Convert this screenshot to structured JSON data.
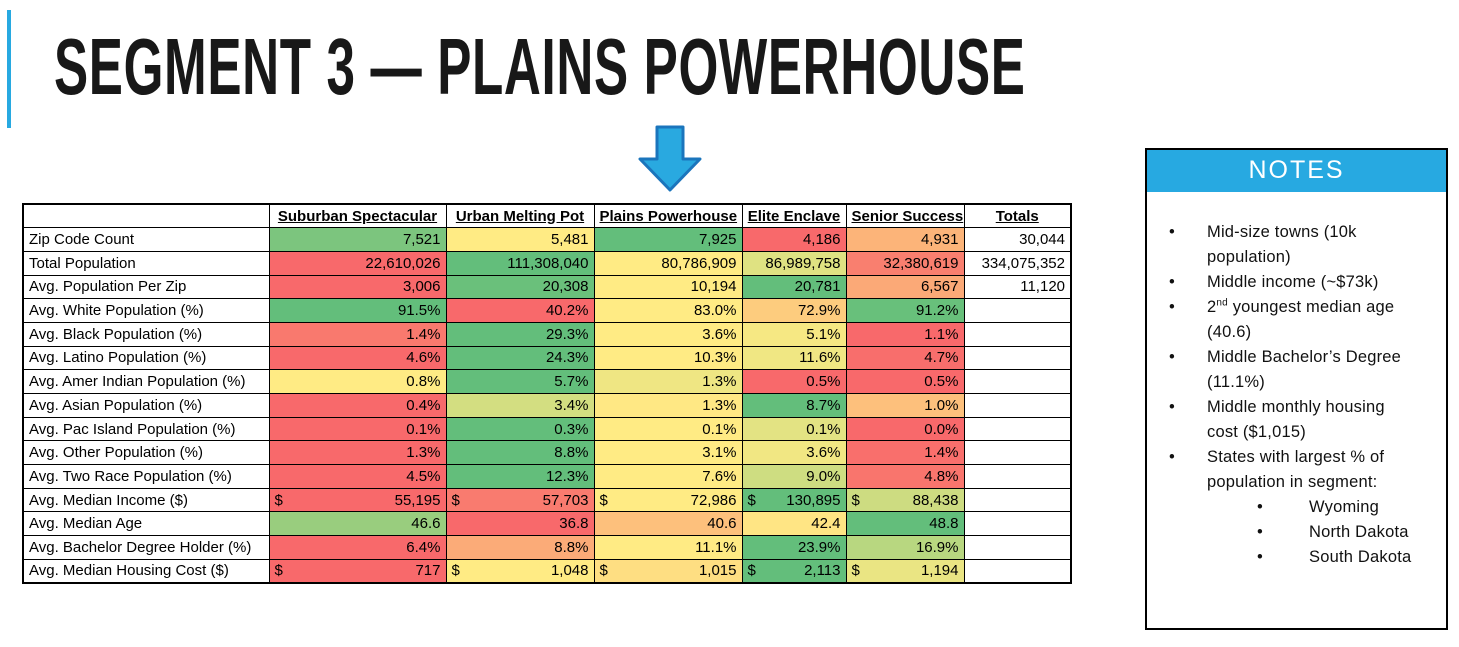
{
  "slide": {
    "title": "SEGMENT 3 — PLAINS POWERHOUSE"
  },
  "colors": {
    "accent_blue": "#27A9E1",
    "arrow_fill": "#29A9E0",
    "arrow_stroke": "#1B75BC",
    "scale_red": "#F8696B",
    "scale_yellow": "#FFEB84",
    "scale_green": "#63BE7B"
  },
  "arrow": {
    "name": "down-arrow"
  },
  "table": {
    "headers": [
      "",
      "Suburban Spectacular",
      "Urban Melting Pot",
      "Plains Powerhouse",
      "Elite Enclave",
      "Senior Success",
      "Totals"
    ],
    "column_keys": [
      "suburban-spectacular",
      "urban-melting-pot",
      "plains-powerhouse",
      "elite-enclave",
      "senior-success"
    ],
    "rows": [
      {
        "label": "Zip Code Count",
        "cells": [
          {
            "v": "7,521",
            "bg": "#7CC57E"
          },
          {
            "v": "5,481",
            "bg": "#FFEB84"
          },
          {
            "v": "7,925",
            "bg": "#63BE7B"
          },
          {
            "v": "4,186",
            "bg": "#F8696B"
          },
          {
            "v": "4,931",
            "bg": "#FCB479"
          }
        ],
        "total": "30,044"
      },
      {
        "label": "Total Population",
        "cells": [
          {
            "v": "22,610,026",
            "bg": "#F8696B"
          },
          {
            "v": "111,308,040",
            "bg": "#63BE7B"
          },
          {
            "v": "80,786,909",
            "bg": "#FFEB84"
          },
          {
            "v": "86,989,758",
            "bg": "#DFE282"
          },
          {
            "v": "32,380,619",
            "bg": "#F97F6F"
          }
        ],
        "total": "334,075,352"
      },
      {
        "label": "Avg. Population Per Zip",
        "cells": [
          {
            "v": "3,006",
            "bg": "#F8696B"
          },
          {
            "v": "20,308",
            "bg": "#6AC07B"
          },
          {
            "v": "10,194",
            "bg": "#FFEB84"
          },
          {
            "v": "20,781",
            "bg": "#63BE7B"
          },
          {
            "v": "6,567",
            "bg": "#FBA977"
          }
        ],
        "total": "11,120"
      },
      {
        "label": "Avg. White Population (%)",
        "cells": [
          {
            "v": "91.5%",
            "bg": "#63BE7B"
          },
          {
            "v": "40.2%",
            "bg": "#F8696B"
          },
          {
            "v": "83.0%",
            "bg": "#FFEB84"
          },
          {
            "v": "72.9%",
            "bg": "#FDCC7E"
          },
          {
            "v": "91.2%",
            "bg": "#68C07B"
          }
        ],
        "total": ""
      },
      {
        "label": "Avg. Black Population (%)",
        "cells": [
          {
            "v": "1.4%",
            "bg": "#F9796E"
          },
          {
            "v": "29.3%",
            "bg": "#63BE7B"
          },
          {
            "v": "3.6%",
            "bg": "#FFEB84"
          },
          {
            "v": "5.1%",
            "bg": "#F6E883"
          },
          {
            "v": "1.1%",
            "bg": "#F8696B"
          }
        ],
        "total": ""
      },
      {
        "label": "Avg. Latino Population (%)",
        "cells": [
          {
            "v": "4.6%",
            "bg": "#F8696B"
          },
          {
            "v": "24.3%",
            "bg": "#63BE7B"
          },
          {
            "v": "10.3%",
            "bg": "#FFEB84"
          },
          {
            "v": "11.6%",
            "bg": "#F0E783"
          },
          {
            "v": "4.7%",
            "bg": "#F86E6C"
          }
        ],
        "total": ""
      },
      {
        "label": "Avg. Amer Indian Population (%)",
        "cells": [
          {
            "v": "0.8%",
            "bg": "#FFEB84"
          },
          {
            "v": "5.7%",
            "bg": "#63BE7B"
          },
          {
            "v": "1.3%",
            "bg": "#EFE683"
          },
          {
            "v": "0.5%",
            "bg": "#F8696B"
          },
          {
            "v": "0.5%",
            "bg": "#F8696B"
          }
        ],
        "total": ""
      },
      {
        "label": "Avg. Asian Population (%)",
        "cells": [
          {
            "v": "0.4%",
            "bg": "#F8696B"
          },
          {
            "v": "3.4%",
            "bg": "#D3DE81"
          },
          {
            "v": "1.3%",
            "bg": "#FFE884"
          },
          {
            "v": "8.7%",
            "bg": "#63BE7B"
          },
          {
            "v": "1.0%",
            "bg": "#FDC07C"
          }
        ],
        "total": ""
      },
      {
        "label": "Avg. Pac Island Population (%)",
        "cells": [
          {
            "v": "0.1%",
            "bg": "#F8696B"
          },
          {
            "v": "0.3%",
            "bg": "#63BE7B"
          },
          {
            "v": "0.1%",
            "bg": "#FFEB84"
          },
          {
            "v": "0.1%",
            "bg": "#E3E383"
          },
          {
            "v": "0.0%",
            "bg": "#F8696B"
          }
        ],
        "total": ""
      },
      {
        "label": "Avg. Other Population (%)",
        "cells": [
          {
            "v": "1.3%",
            "bg": "#F8696B"
          },
          {
            "v": "8.8%",
            "bg": "#63BE7B"
          },
          {
            "v": "3.1%",
            "bg": "#FFEB84"
          },
          {
            "v": "3.6%",
            "bg": "#F1E783"
          },
          {
            "v": "1.4%",
            "bg": "#F96F6C"
          }
        ],
        "total": ""
      },
      {
        "label": "Avg. Two Race Population (%)",
        "cells": [
          {
            "v": "4.5%",
            "bg": "#F8696B"
          },
          {
            "v": "12.3%",
            "bg": "#63BE7B"
          },
          {
            "v": "7.6%",
            "bg": "#FFEB84"
          },
          {
            "v": "9.0%",
            "bg": "#CEDD81"
          },
          {
            "v": "4.8%",
            "bg": "#F9756D"
          }
        ],
        "total": ""
      },
      {
        "label": "Avg. Median Income ($)",
        "cells": [
          {
            "v": "55,195",
            "bg": "#F8696B",
            "prefix": "$"
          },
          {
            "v": "57,703",
            "bg": "#F97B6F",
            "prefix": "$"
          },
          {
            "v": "72,986",
            "bg": "#FFEB84",
            "prefix": "$"
          },
          {
            "v": "130,895",
            "bg": "#63BE7B",
            "prefix": "$"
          },
          {
            "v": "88,438",
            "bg": "#CDDC81",
            "prefix": "$"
          }
        ],
        "total": ""
      },
      {
        "label": "Avg. Median Age",
        "cells": [
          {
            "v": "46.6",
            "bg": "#99CD7E"
          },
          {
            "v": "36.8",
            "bg": "#F8696B"
          },
          {
            "v": "40.6",
            "bg": "#FDC07C"
          },
          {
            "v": "42.4",
            "bg": "#FFE584"
          },
          {
            "v": "48.8",
            "bg": "#63BE7B"
          }
        ],
        "total": ""
      },
      {
        "label": "Avg. Bachelor Degree Holder (%)",
        "cells": [
          {
            "v": "6.4%",
            "bg": "#F8696B"
          },
          {
            "v": "8.8%",
            "bg": "#FBAB78"
          },
          {
            "v": "11.1%",
            "bg": "#FFEB84"
          },
          {
            "v": "23.9%",
            "bg": "#63BE7B"
          },
          {
            "v": "16.9%",
            "bg": "#B8D780"
          }
        ],
        "total": ""
      },
      {
        "label": "Avg. Median Housing Cost ($)",
        "cells": [
          {
            "v": "717",
            "bg": "#F8696B",
            "prefix": "$"
          },
          {
            "v": "1,048",
            "bg": "#FFEB84",
            "prefix": "$"
          },
          {
            "v": "1,015",
            "bg": "#FEDE82",
            "prefix": "$"
          },
          {
            "v": "2,113",
            "bg": "#63BE7B",
            "prefix": "$"
          },
          {
            "v": "1,194",
            "bg": "#EAE583",
            "prefix": "$"
          }
        ],
        "total": ""
      }
    ]
  },
  "notes": {
    "title": "NOTES",
    "items": [
      {
        "text": "Mid-size towns (10k population)"
      },
      {
        "text": "Middle income (~$73k)"
      },
      {
        "pre": "2",
        "sup": "nd",
        "post": " youngest median age (40.6)"
      },
      {
        "text": "Middle Bachelor’s Degree (11.1%)"
      },
      {
        "text": "Middle monthly housing cost ($1,015)"
      },
      {
        "text": "States with largest % of population in segment:",
        "children": [
          "Wyoming",
          "North Dakota",
          "South Dakota"
        ]
      }
    ]
  }
}
